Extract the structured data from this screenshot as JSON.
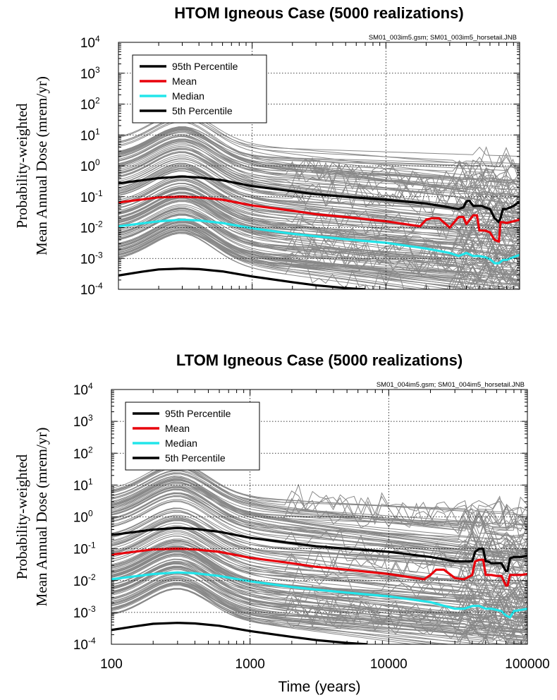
{
  "figure": {
    "x_label": "Time (years)",
    "x_tick_labels": [
      "100",
      "1000",
      "10000",
      "100000"
    ]
  },
  "chart_data": [
    {
      "type": "line",
      "title": "HTOM Igneous Case (5000 realizations)",
      "file_label": "SM01_003im5.gsm; SM01_003im5_horsetail.JNB",
      "ylabel": [
        "Probability-weighted",
        "Mean Annual Dose (mrem/yr)"
      ],
      "xlabel": "",
      "x_scale": "log",
      "y_scale": "log",
      "xlim": [
        100,
        100000
      ],
      "ylim": [
        0.0001,
        10000
      ],
      "y_tick_labels": [
        {
          "base": "10",
          "exp": "4"
        },
        {
          "base": "10",
          "exp": "3"
        },
        {
          "base": "10",
          "exp": "2"
        },
        {
          "base": "10",
          "exp": "1"
        },
        {
          "base": "10",
          "exp": "0"
        },
        {
          "base": "10",
          "exp": "-1"
        },
        {
          "base": "10",
          "exp": "-2"
        },
        {
          "base": "10",
          "exp": "-3"
        },
        {
          "base": "10",
          "exp": "-4"
        }
      ],
      "grid": "dotted at decades",
      "legend_position": "top-left",
      "realization_color": "#888888",
      "series": [
        {
          "name": "95th Percentile",
          "color": "#000000",
          "x": [
            100,
            200,
            300,
            400,
            600,
            1000,
            2000,
            3000,
            5000,
            10000,
            20000,
            30000,
            35000,
            38000,
            40000,
            42000,
            45000,
            48000,
            50000,
            52000,
            55000,
            60000,
            65000,
            70000,
            72000,
            75000,
            80000,
            90000,
            100000
          ],
          "y": [
            0.27,
            0.4,
            0.45,
            0.42,
            0.34,
            0.22,
            0.15,
            0.12,
            0.1,
            0.08,
            0.06,
            0.045,
            0.04,
            0.045,
            0.07,
            0.075,
            0.05,
            0.05,
            0.05,
            0.05,
            0.045,
            0.04,
            0.02,
            0.015,
            0.02,
            0.04,
            0.04,
            0.05,
            0.07
          ]
        },
        {
          "name": "Mean",
          "color": "#e8000b",
          "x": [
            100,
            200,
            300,
            400,
            600,
            1000,
            2000,
            3000,
            5000,
            10000,
            18000,
            20000,
            22000,
            25000,
            30000,
            35000,
            38000,
            40000,
            45000,
            48000,
            50000,
            55000,
            60000,
            65000,
            70000,
            72000,
            75000,
            80000,
            90000,
            100000
          ],
          "y": [
            0.065,
            0.095,
            0.1,
            0.095,
            0.08,
            0.052,
            0.035,
            0.027,
            0.022,
            0.016,
            0.011,
            0.018,
            0.02,
            0.02,
            0.01,
            0.022,
            0.022,
            0.013,
            0.025,
            0.025,
            0.008,
            0.008,
            0.007,
            0.004,
            0.0035,
            0.015,
            0.015,
            0.014,
            0.016,
            0.018
          ]
        },
        {
          "name": "Median",
          "color": "#22e5ea",
          "x": [
            100,
            200,
            300,
            400,
            600,
            1000,
            2000,
            3000,
            5000,
            10000,
            20000,
            30000,
            35000,
            40000,
            45000,
            50000,
            55000,
            60000,
            65000,
            70000,
            75000,
            80000,
            90000,
            100000
          ],
          "y": [
            0.011,
            0.016,
            0.018,
            0.017,
            0.014,
            0.0095,
            0.0063,
            0.0052,
            0.0042,
            0.0032,
            0.0021,
            0.0015,
            0.0012,
            0.0015,
            0.0012,
            0.0012,
            0.0011,
            0.00095,
            0.0007,
            0.0007,
            0.0009,
            0.0009,
            0.0011,
            0.0013
          ]
        },
        {
          "name": "5th Percentile",
          "color": "#000000",
          "x": [
            100,
            150,
            200,
            300,
            400,
            600,
            1000,
            2000,
            3000,
            5000,
            7000
          ],
          "y": [
            0.00028,
            0.00037,
            0.00044,
            0.00047,
            0.00045,
            0.00038,
            0.00026,
            0.00017,
            0.000135,
            0.00011,
            0.0001
          ]
        }
      ]
    },
    {
      "type": "line",
      "title": "LTOM Igneous Case (5000 realizations)",
      "file_label": "SM01_004im5.gsm; SM01_004im5_horsetail.JNB",
      "ylabel": [
        "Probability-weighted",
        "Mean Annual Dose (mrem/yr)"
      ],
      "xlabel": "Time (years)",
      "x_scale": "log",
      "y_scale": "log",
      "xlim": [
        100,
        100000
      ],
      "ylim": [
        0.0001,
        10000
      ],
      "y_tick_labels": [
        {
          "base": "10",
          "exp": "4"
        },
        {
          "base": "10",
          "exp": "3"
        },
        {
          "base": "10",
          "exp": "2"
        },
        {
          "base": "10",
          "exp": "1"
        },
        {
          "base": "10",
          "exp": "0"
        },
        {
          "base": "10",
          "exp": "-1"
        },
        {
          "base": "10",
          "exp": "-2"
        },
        {
          "base": "10",
          "exp": "-3"
        },
        {
          "base": "10",
          "exp": "-4"
        }
      ],
      "grid": "dotted at decades",
      "legend_position": "top-left",
      "realization_color": "#888888",
      "series": [
        {
          "name": "95th Percentile",
          "color": "#000000",
          "x": [
            100,
            200,
            300,
            400,
            600,
            1000,
            2000,
            3000,
            5000,
            10000,
            20000,
            30000,
            35000,
            40000,
            42000,
            45000,
            48000,
            50000,
            52000,
            55000,
            60000,
            65000,
            70000,
            72000,
            75000,
            80000,
            90000,
            100000
          ],
          "y": [
            0.27,
            0.4,
            0.45,
            0.42,
            0.34,
            0.22,
            0.15,
            0.12,
            0.1,
            0.08,
            0.055,
            0.04,
            0.04,
            0.04,
            0.08,
            0.1,
            0.1,
            0.04,
            0.04,
            0.035,
            0.035,
            0.035,
            0.02,
            0.02,
            0.05,
            0.055,
            0.055,
            0.06
          ]
        },
        {
          "name": "Mean",
          "color": "#e8000b",
          "x": [
            100,
            200,
            300,
            400,
            600,
            1000,
            2000,
            3000,
            5000,
            10000,
            18000,
            20000,
            22000,
            25000,
            30000,
            35000,
            40000,
            42000,
            45000,
            48000,
            50000,
            55000,
            60000,
            65000,
            70000,
            72000,
            75000,
            80000,
            90000,
            100000
          ],
          "y": [
            0.065,
            0.095,
            0.1,
            0.095,
            0.08,
            0.052,
            0.035,
            0.027,
            0.022,
            0.016,
            0.011,
            0.015,
            0.022,
            0.022,
            0.012,
            0.011,
            0.015,
            0.04,
            0.045,
            0.045,
            0.015,
            0.015,
            0.014,
            0.014,
            0.007,
            0.007,
            0.015,
            0.015,
            0.015,
            0.016
          ]
        },
        {
          "name": "Median",
          "color": "#22e5ea",
          "x": [
            100,
            200,
            300,
            400,
            600,
            1000,
            2000,
            3000,
            5000,
            10000,
            20000,
            30000,
            35000,
            40000,
            45000,
            50000,
            55000,
            60000,
            65000,
            70000,
            75000,
            80000,
            90000,
            100000
          ],
          "y": [
            0.011,
            0.016,
            0.018,
            0.017,
            0.014,
            0.0095,
            0.0063,
            0.0052,
            0.0042,
            0.0032,
            0.0021,
            0.0013,
            0.0013,
            0.0016,
            0.0016,
            0.0013,
            0.0013,
            0.0012,
            0.0011,
            0.0008,
            0.0007,
            0.0011,
            0.0012,
            0.0013
          ]
        },
        {
          "name": "5th Percentile",
          "color": "#000000",
          "x": [
            100,
            150,
            200,
            300,
            400,
            600,
            1000,
            2000,
            3000,
            5000,
            7000
          ],
          "y": [
            0.00028,
            0.00037,
            0.00044,
            0.00047,
            0.00045,
            0.00038,
            0.00026,
            0.00017,
            0.000135,
            0.00011,
            0.0001
          ]
        }
      ]
    }
  ]
}
